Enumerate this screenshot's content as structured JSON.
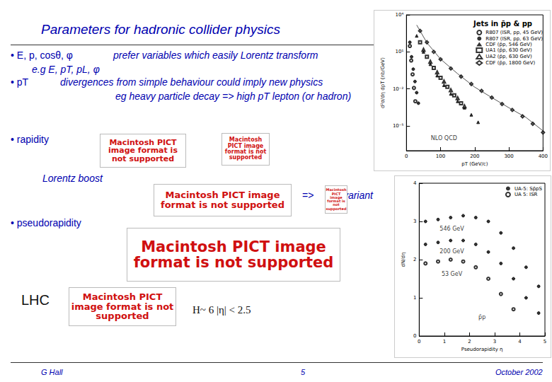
{
  "slide": {
    "title": "Parameters for hadronic collider physics",
    "texts": [
      "• E, p, cosθ, φ",
      "prefer variables which easily Lorentz transform",
      "e.g E, pT, pL, φ",
      "• pT",
      "divergences from simple behaviour could imply new physics",
      "eg heavy particle decay => high pT lepton (or hadron)",
      "• rapidity",
      "Lorentz boost",
      "=>",
      "invariant",
      "• pseudorapidity",
      "LHC",
      "H~ 6 |η| < 2.5"
    ],
    "pict_boxes": [
      "Macintosh PICT image format is not supported",
      "Macintosh PICT image format is not supported",
      "Macintosh PICT image format is not supported",
      "Macintosh PICT image format is not supported",
      "Macintosh PICT image format is not supported",
      "Macintosh PICT image format is not supported"
    ],
    "footer": {
      "author": "G Hall",
      "page": "5",
      "date": "October 2002"
    }
  },
  "chart_data": [
    {
      "type": "scatter",
      "title": "Jets in p̄p & pp",
      "x_label": "pT (GeV/c)",
      "y_label": "d²σ/dη dpT (nb/GeV)",
      "log": "y",
      "grid": false,
      "legend": "upper right",
      "xlim": [
        0,
        400
      ],
      "xticks": [
        0,
        100,
        200,
        300,
        400
      ],
      "ylim": [
        1e-07,
        10000
      ],
      "yticks": [
        {
          "value": 10000,
          "label": "10⁴"
        },
        {
          "value": 10,
          "label": "10¹"
        },
        {
          "value": 0.01,
          "label": "10⁻²"
        },
        {
          "value": 1e-05,
          "label": "10⁻⁵"
        }
      ],
      "series": [
        {
          "name": "R807 (ISR, pp, 45 GeV)",
          "color": "#000000",
          "marker": "emptyCircle",
          "x": [
            10,
            14,
            18,
            22,
            26
          ],
          "values": [
            30,
            2,
            0.15,
            0.012,
            0.001
          ]
        },
        {
          "name": "R807 (ISR, pp, 63 GeV)",
          "color": "#000000",
          "marker": "circle",
          "x": [
            10,
            15,
            20,
            25,
            30,
            35
          ],
          "values": [
            60,
            4,
            0.4,
            0.04,
            0.005,
            0.0007
          ]
        },
        {
          "name": "CDF (p̄p, 546 GeV)",
          "color": "#000000",
          "marker": "triangle",
          "x": [
            30,
            50,
            70,
            90,
            110,
            130,
            150,
            170,
            190,
            210
          ],
          "values": [
            200,
            10,
            1,
            0.12,
            0.02,
            0.004,
            0.001,
            0.0003,
            8e-05,
            2e-05
          ]
        },
        {
          "name": "UA1 (p̄p, 630 GeV)",
          "color": "#000000",
          "marker": "emptyRect",
          "x": [
            40,
            60,
            80,
            100,
            120,
            140,
            160
          ],
          "values": [
            60,
            4,
            0.5,
            0.08,
            0.015,
            0.003,
            0.0007
          ]
        },
        {
          "name": "UA2 (p̄p, 630 GeV)",
          "color": "#000000",
          "marker": "emptyTriangle",
          "x": [
            50,
            70,
            90,
            110,
            130,
            150,
            170
          ],
          "values": [
            15,
            1.6,
            0.22,
            0.04,
            0.008,
            0.0018,
            0.0004
          ]
        },
        {
          "name": "CDF (p̄p, 1800 GeV)",
          "color": "#000000",
          "marker": "emptyDiamond",
          "x": [
            40,
            60,
            80,
            100,
            130,
            160,
            190,
            220,
            250,
            280,
            310,
            340,
            370,
            400
          ],
          "values": [
            500,
            60,
            10,
            2.5,
            0.45,
            0.1,
            0.025,
            0.007,
            0.002,
            0.0006,
            0.0002,
            6e-05,
            1.5e-05,
            3e-06
          ]
        },
        {
          "type": "line",
          "color": "#555555",
          "line_style": "solid",
          "x": [
            30,
            60,
            100,
            150,
            200,
            250,
            300,
            350,
            400
          ],
          "values": [
            1500,
            55,
            2.6,
            0.17,
            0.014,
            0.002,
            0.0003,
            5e-05,
            4e-06
          ]
        }
      ],
      "annotations": [
        {
          "text": "NLO QCD",
          "x": 110,
          "y": 1e-06
        }
      ]
    },
    {
      "type": "scatter",
      "x_label": "Pseudorapidity η",
      "y_label": "dN/dη",
      "grid": false,
      "legend": "upper right",
      "xlim": [
        0,
        5
      ],
      "xticks": [
        0,
        1,
        2,
        3,
        4,
        5
      ],
      "ylim": [
        0,
        4
      ],
      "yticks": [
        0,
        1,
        2,
        3,
        4
      ],
      "series": [
        {
          "name": "UA-5: Sp̄pS",
          "color": "#000000",
          "marker": "circle",
          "x": [
            0.25,
            0.75,
            1.25,
            1.75,
            2.25,
            2.75,
            3.25,
            3.75,
            4.25,
            4.75,
            0.25,
            0.75,
            1.25,
            1.75,
            2.25,
            2.75,
            3.25,
            3.75,
            4.25,
            4.75
          ],
          "values": [
            3.0,
            3.05,
            3.1,
            3.15,
            3.1,
            3.0,
            2.7,
            2.3,
            1.8,
            1.3,
            2.4,
            2.45,
            2.5,
            2.5,
            2.4,
            2.2,
            1.9,
            1.5,
            1.0,
            0.6
          ]
        },
        {
          "name": "UA 5: ISR",
          "color": "#000000",
          "marker": "emptyCircle",
          "x": [
            0.25,
            0.75,
            1.25,
            1.75,
            2.25,
            2.75,
            3.25,
            3.75
          ],
          "values": [
            1.9,
            1.95,
            2.0,
            1.95,
            1.8,
            1.5,
            1.1,
            0.7
          ]
        }
      ],
      "annotations": [
        {
          "text": "546 GeV",
          "x": 1.3,
          "y": 2.8
        },
        {
          "text": "200 GeV",
          "x": 1.3,
          "y": 2.22
        },
        {
          "text": "53 GeV",
          "x": 1.3,
          "y": 1.62
        },
        {
          "text": "p̄p",
          "x": 2.5,
          "y": 0.5
        }
      ]
    }
  ]
}
